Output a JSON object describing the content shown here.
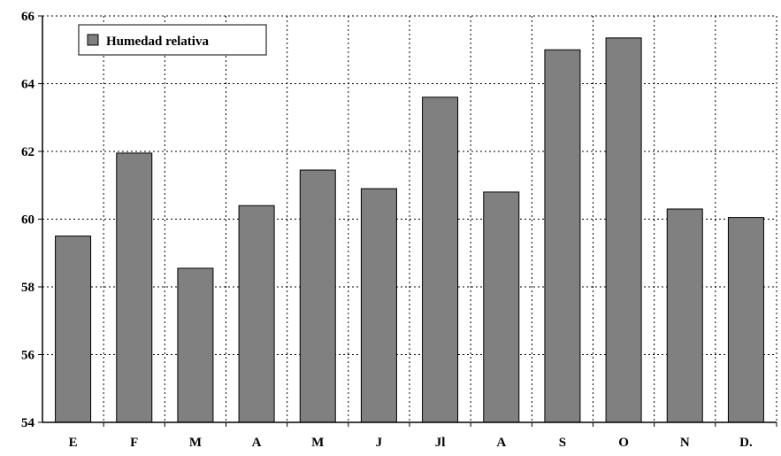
{
  "chart_data": {
    "type": "bar",
    "categories": [
      "E",
      "F",
      "M",
      "A",
      "M",
      "J",
      "Jl",
      "A",
      "S",
      "O",
      "N",
      "D."
    ],
    "series": [
      {
        "name": "Humedad relativa",
        "values": [
          59.5,
          61.95,
          58.55,
          60.4,
          61.45,
          60.9,
          63.6,
          60.8,
          65.0,
          65.35,
          60.3,
          60.05
        ],
        "color": "#808080"
      }
    ],
    "ylim": [
      54,
      66
    ],
    "yticks": [
      "54",
      "56",
      "58",
      "60",
      "62",
      "64",
      "66"
    ],
    "title": "",
    "xlabel": "",
    "ylabel": "",
    "grid": true,
    "legend_position": "top-left"
  }
}
